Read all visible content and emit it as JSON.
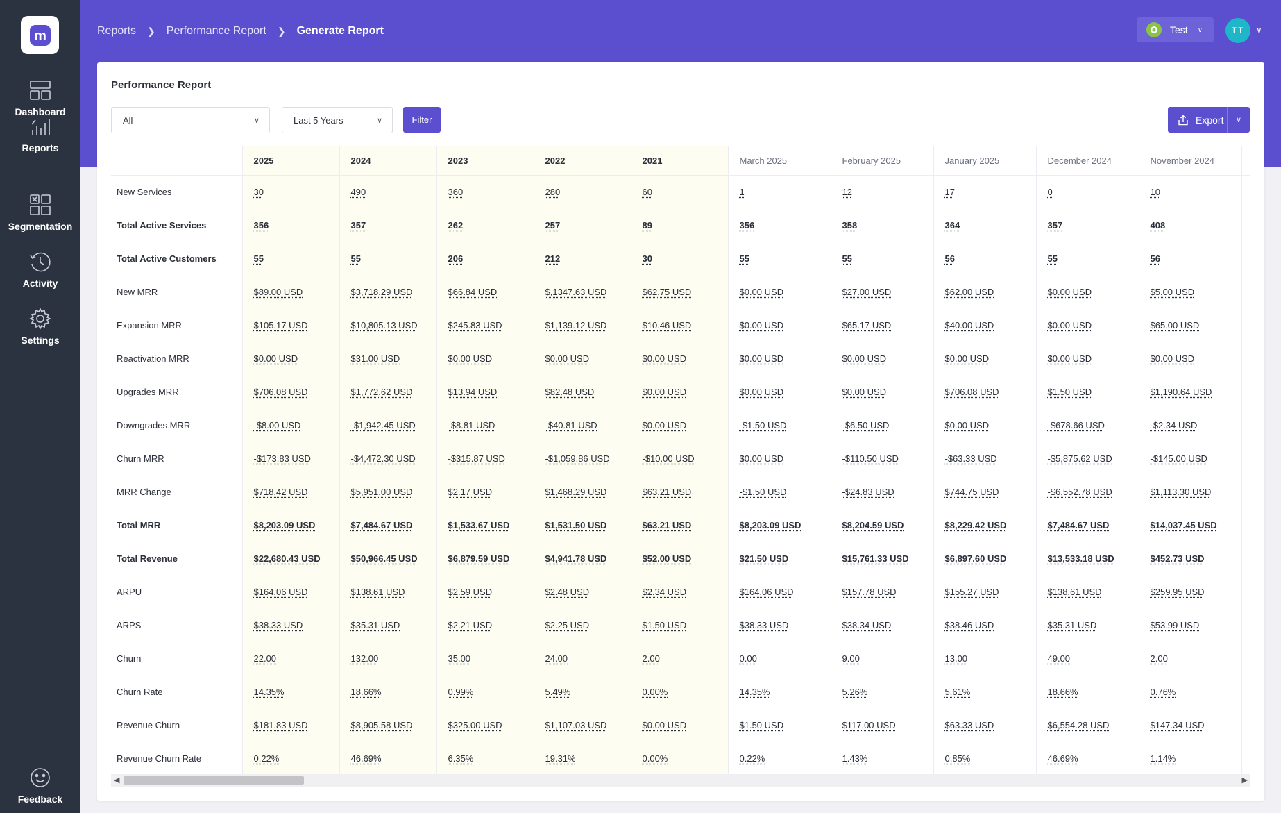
{
  "sidebar": {
    "logo_letter": "m",
    "items": [
      {
        "label": "Dashboard"
      },
      {
        "label": "Reports"
      },
      {
        "label": "Segmentation"
      },
      {
        "label": "Activity"
      },
      {
        "label": "Settings"
      }
    ],
    "feedback": "Feedback"
  },
  "header": {
    "breadcrumb": [
      "Reports",
      "Performance Report",
      "Generate Report"
    ],
    "workspace": "Test",
    "avatar_initials": "TT"
  },
  "card": {
    "title": "Performance Report",
    "filter_select": "All",
    "period_select": "Last 5 Years",
    "filter_button": "Filter",
    "export_button": "Export"
  },
  "table": {
    "columns": [
      "2025",
      "2024",
      "2023",
      "2022",
      "2021",
      "March 2025",
      "February 2025",
      "January 2025",
      "December 2024",
      "November 2024"
    ],
    "rows": [
      {
        "label": "New Services",
        "bold": false,
        "values": [
          "30",
          "490",
          "360",
          "280",
          "60",
          "1",
          "12",
          "17",
          "0",
          "10"
        ]
      },
      {
        "label": "Total Active Services",
        "bold": true,
        "values": [
          "356",
          "357",
          "262",
          "257",
          "89",
          "356",
          "358",
          "364",
          "357",
          "408"
        ]
      },
      {
        "label": "Total Active Customers",
        "bold": true,
        "values": [
          "55",
          "55",
          "206",
          "212",
          "30",
          "55",
          "55",
          "56",
          "55",
          "56"
        ]
      },
      {
        "label": "New MRR",
        "bold": false,
        "values": [
          "$89.00 USD",
          "$3,718.29 USD",
          "$66.84 USD",
          "$,1347.63 USD",
          "$62.75 USD",
          "$0.00 USD",
          "$27.00 USD",
          "$62.00 USD",
          "$0.00 USD",
          "$5.00 USD"
        ]
      },
      {
        "label": "Expansion MRR",
        "bold": false,
        "values": [
          "$105.17 USD",
          "$10,805.13 USD",
          "$245.83 USD",
          "$1,139.12 USD",
          "$10.46 USD",
          "$0.00 USD",
          "$65.17 USD",
          "$40.00 USD",
          "$0.00 USD",
          "$65.00 USD"
        ]
      },
      {
        "label": "Reactivation MRR",
        "bold": false,
        "values": [
          "$0.00 USD",
          "$31.00 USD",
          "$0.00 USD",
          "$0.00 USD",
          "$0.00 USD",
          "$0.00 USD",
          "$0.00 USD",
          "$0.00 USD",
          "$0.00 USD",
          "$0.00 USD"
        ]
      },
      {
        "label": "Upgrades MRR",
        "bold": false,
        "values": [
          "$706.08 USD",
          "$1,772.62 USD",
          "$13.94 USD",
          "$82.48 USD",
          "$0.00 USD",
          "$0.00 USD",
          "$0.00 USD",
          "$706.08 USD",
          "$1.50 USD",
          "$1,190.64 USD"
        ]
      },
      {
        "label": "Downgrades MRR",
        "bold": false,
        "values": [
          "-$8.00 USD",
          "-$1,942.45 USD",
          "-$8.81 USD",
          "-$40.81 USD",
          "$0.00 USD",
          "-$1.50 USD",
          "-$6.50 USD",
          "$0.00 USD",
          "-$678.66 USD",
          "-$2.34 USD"
        ]
      },
      {
        "label": "Churn MRR",
        "bold": false,
        "values": [
          "-$173.83 USD",
          "-$4,472.30 USD",
          "-$315.87 USD",
          "-$1,059.86 USD",
          "-$10.00 USD",
          "$0.00 USD",
          "-$110.50 USD",
          "-$63.33 USD",
          "-$5,875.62 USD",
          "-$145.00 USD"
        ]
      },
      {
        "label": "MRR Change",
        "bold": false,
        "values": [
          "$718.42 USD",
          "$5,951.00 USD",
          "$2.17 USD",
          "$1,468.29 USD",
          "$63.21 USD",
          "-$1.50 USD",
          "-$24.83 USD",
          "$744.75 USD",
          "-$6,552.78 USD",
          "$1,113.30 USD"
        ]
      },
      {
        "label": "Total MRR",
        "bold": true,
        "values": [
          "$8,203.09 USD",
          "$7,484.67 USD",
          "$1,533.67 USD",
          "$1,531.50 USD",
          "$63.21 USD",
          "$8,203.09 USD",
          "$8,204.59 USD",
          "$8,229.42 USD",
          "$7,484.67 USD",
          "$14,037.45 USD"
        ]
      },
      {
        "label": "Total Revenue",
        "bold": true,
        "values": [
          "$22,680.43 USD",
          "$50,966.45 USD",
          "$6,879.59 USD",
          "$4,941.78 USD",
          "$52.00 USD",
          "$21.50 USD",
          "$15,761.33 USD",
          "$6,897.60 USD",
          "$13,533.18 USD",
          "$452.73 USD"
        ]
      },
      {
        "label": "ARPU",
        "bold": false,
        "values": [
          "$164.06 USD",
          "$138.61 USD",
          "$2.59 USD",
          "$2.48 USD",
          "$2.34 USD",
          "$164.06 USD",
          "$157.78 USD",
          "$155.27 USD",
          "$138.61 USD",
          "$259.95 USD"
        ]
      },
      {
        "label": "ARPS",
        "bold": false,
        "values": [
          "$38.33 USD",
          "$35.31 USD",
          "$2.21 USD",
          "$2.25 USD",
          "$1.50 USD",
          "$38.33 USD",
          "$38.34 USD",
          "$38.46 USD",
          "$35.31 USD",
          "$53.99 USD"
        ]
      },
      {
        "label": "Churn",
        "bold": false,
        "values": [
          "22.00",
          "132.00",
          "35.00",
          "24.00",
          "2.00",
          "0.00",
          "9.00",
          "13.00",
          "49.00",
          "2.00"
        ]
      },
      {
        "label": "Churn Rate",
        "bold": false,
        "values": [
          "14.35%",
          "18.66%",
          "0.99%",
          "5.49%",
          "0.00%",
          "14.35%",
          "5.26%",
          "5.61%",
          "18.66%",
          "0.76%"
        ]
      },
      {
        "label": "Revenue Churn",
        "bold": false,
        "values": [
          "$181.83 USD",
          "$8,905.58 USD",
          "$325.00 USD",
          "$1,107.03 USD",
          "$0.00 USD",
          "$1.50 USD",
          "$117.00 USD",
          "$63.33 USD",
          "$6,554.28 USD",
          "$147.34 USD"
        ]
      },
      {
        "label": "Revenue Churn Rate",
        "bold": false,
        "values": [
          "0.22%",
          "46.69%",
          "6.35%",
          "19.31%",
          "0.00%",
          "0.22%",
          "1.43%",
          "0.85%",
          "46.69%",
          "1.14%"
        ]
      }
    ]
  },
  "colors": {
    "brand": "#5b4fd0",
    "sidebar": "#2b3240",
    "year_column_bg": "#fdfdf1",
    "avatar": "#1fb6c9"
  }
}
